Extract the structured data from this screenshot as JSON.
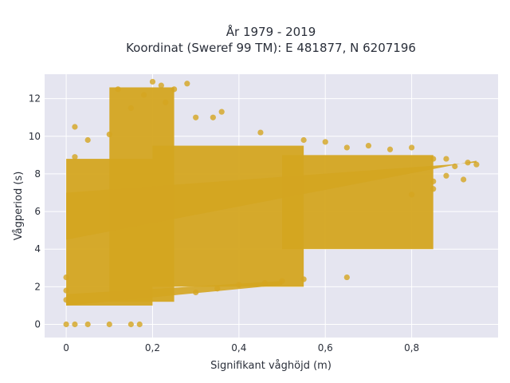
{
  "chart_data": {
    "type": "scatter",
    "title": "År 1979 - 2019",
    "subtitle": "Koordinat (Sweref 99 TM): E 481877, N 6207196",
    "xlabel": "Signifikant våghöjd (m)",
    "ylabel": "Vågperiod (s)",
    "xlim": [
      -0.05,
      1.0
    ],
    "ylim": [
      -0.7,
      13.3
    ],
    "x_ticks": [
      0,
      0.2,
      0.4,
      0.6,
      0.8
    ],
    "x_tick_labels": [
      "0",
      "0,2",
      "0,4",
      "0,6",
      "0,8"
    ],
    "y_ticks": [
      0,
      2,
      4,
      6,
      8,
      10,
      12
    ],
    "y_tick_labels": [
      "0",
      "2",
      "4",
      "6",
      "8",
      "10",
      "12"
    ],
    "grid": true,
    "legend": "none",
    "point_color": "#D4A520",
    "background_color": "#E5E5F0",
    "regions": [
      {
        "x": [
          0.0,
          0.2
        ],
        "y": [
          1.0,
          8.8
        ]
      },
      {
        "x": [
          0.1,
          0.25
        ],
        "y": [
          1.2,
          12.6
        ]
      },
      {
        "x": [
          0.2,
          0.55
        ],
        "y": [
          2.0,
          9.5
        ]
      },
      {
        "x": [
          0.5,
          0.85
        ],
        "y": [
          4.0,
          9.0
        ]
      }
    ],
    "bands": [
      {
        "name": "upper",
        "x": [
          0.0,
          0.95
        ],
        "y_start": [
          4.5,
          8.7
        ],
        "y_end": [
          7.0,
          8.6
        ]
      },
      {
        "name": "lower",
        "x": [
          0.0,
          0.5
        ],
        "y_start": [
          1.0,
          2.1
        ],
        "y_end": [
          1.6,
          2.3
        ]
      }
    ],
    "series": [
      {
        "points": [
          [
            0.0,
            0.0
          ],
          [
            0.02,
            0.0
          ],
          [
            0.05,
            0.0
          ],
          [
            0.1,
            0.0
          ],
          [
            0.15,
            0.0
          ],
          [
            0.17,
            0.0
          ],
          [
            0.0,
            2.5
          ],
          [
            0.0,
            1.8
          ],
          [
            0.0,
            1.3
          ],
          [
            0.12,
            12.5
          ],
          [
            0.2,
            12.9
          ],
          [
            0.22,
            12.7
          ],
          [
            0.25,
            12.5
          ],
          [
            0.28,
            12.8
          ],
          [
            0.18,
            12.2
          ],
          [
            0.15,
            11.5
          ],
          [
            0.23,
            11.8
          ],
          [
            0.3,
            11.0
          ],
          [
            0.34,
            11.0
          ],
          [
            0.36,
            11.3
          ],
          [
            0.45,
            10.2
          ],
          [
            0.55,
            9.8
          ],
          [
            0.6,
            9.7
          ],
          [
            0.65,
            9.4
          ],
          [
            0.7,
            9.5
          ],
          [
            0.75,
            9.3
          ],
          [
            0.8,
            9.4
          ],
          [
            0.85,
            8.8
          ],
          [
            0.88,
            8.8
          ],
          [
            0.9,
            8.4
          ],
          [
            0.93,
            8.6
          ],
          [
            0.95,
            8.5
          ],
          [
            0.92,
            7.7
          ],
          [
            0.88,
            7.9
          ],
          [
            0.85,
            7.6
          ],
          [
            0.8,
            6.9
          ],
          [
            0.85,
            7.2
          ],
          [
            0.55,
            2.4
          ],
          [
            0.5,
            2.3
          ],
          [
            0.46,
            2.2
          ],
          [
            0.4,
            2.1
          ],
          [
            0.65,
            2.5
          ],
          [
            0.3,
            1.7
          ],
          [
            0.35,
            1.9
          ],
          [
            0.02,
            10.5
          ],
          [
            0.05,
            9.8
          ],
          [
            0.1,
            10.1
          ],
          [
            0.02,
            8.9
          ]
        ]
      }
    ]
  }
}
